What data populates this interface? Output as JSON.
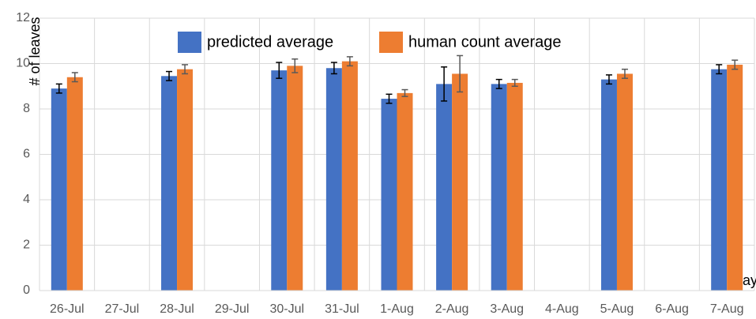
{
  "chart_data": {
    "type": "bar",
    "categories": [
      "26-Jul",
      "27-Jul",
      "28-Jul",
      "29-Jul",
      "30-Jul",
      "31-Jul",
      "1-Aug",
      "2-Aug",
      "3-Aug",
      "4-Aug",
      "5-Aug",
      "6-Aug",
      "7-Aug"
    ],
    "series": [
      {
        "name": "predicted average",
        "color": "#4472c4",
        "values": [
          8.9,
          null,
          9.45,
          null,
          9.7,
          9.8,
          8.45,
          9.1,
          9.1,
          null,
          9.3,
          null,
          9.75
        ],
        "errors": [
          0.2,
          null,
          0.2,
          null,
          0.35,
          0.25,
          0.2,
          0.75,
          0.2,
          null,
          0.2,
          null,
          0.2
        ]
      },
      {
        "name": "human count average",
        "color": "#ed7d31",
        "values": [
          9.4,
          null,
          9.75,
          null,
          9.9,
          10.1,
          8.7,
          9.55,
          9.15,
          null,
          9.55,
          null,
          9.95
        ],
        "errors": [
          0.2,
          null,
          0.2,
          null,
          0.3,
          0.2,
          0.15,
          0.8,
          0.15,
          null,
          0.2,
          null,
          0.2
        ]
      }
    ],
    "y_label": "# of leaves",
    "x_label": "day",
    "ylim": [
      0,
      12
    ],
    "yticks": [
      0,
      2,
      4,
      6,
      8,
      10,
      12
    ],
    "grid": true
  }
}
